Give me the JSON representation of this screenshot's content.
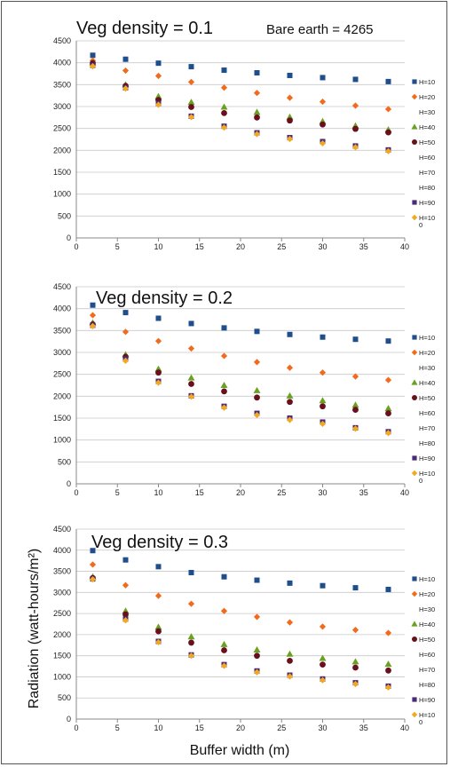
{
  "figure": {
    "ylabel": "Radiation (watt-hours/m²)",
    "xlabel": "Buffer width (m)"
  },
  "chart_data": [
    {
      "type": "scatter",
      "title": "Veg density = 0.1",
      "annotation": "Bare earth = 4265",
      "x": [
        2,
        6,
        10,
        14,
        18,
        22,
        26,
        30,
        34,
        38
      ],
      "xlim": [
        0,
        40
      ],
      "xticks": [
        0,
        5,
        10,
        15,
        20,
        25,
        30,
        35,
        40
      ],
      "ylim": [
        0,
        4500
      ],
      "yticks": [
        0,
        500,
        1000,
        1500,
        2000,
        2500,
        3000,
        3500,
        4000,
        4500
      ],
      "grid": "horizontal",
      "legend_position": "right",
      "series": [
        {
          "name": "H=10",
          "marker": "square",
          "color": "#1f4e8c",
          "values": [
            4170,
            4080,
            3990,
            3910,
            3830,
            3770,
            3710,
            3660,
            3620,
            3570
          ]
        },
        {
          "name": "H=20",
          "marker": "diamond",
          "color": "#f26b1d",
          "values": [
            4050,
            3820,
            3700,
            3560,
            3430,
            3310,
            3200,
            3110,
            3020,
            2940
          ]
        },
        {
          "name": "H=30",
          "marker": "none",
          "color": "#ffffff",
          "values": []
        },
        {
          "name": "H=40",
          "marker": "triangle",
          "color": "#6aa121",
          "values": [
            4000,
            3500,
            3230,
            3100,
            2990,
            2870,
            2760,
            2660,
            2560,
            2470
          ]
        },
        {
          "name": "H=50",
          "marker": "circle",
          "color": "#6a0f1e",
          "values": [
            3990,
            3470,
            3150,
            2990,
            2850,
            2750,
            2680,
            2590,
            2490,
            2410
          ]
        },
        {
          "name": "H=60",
          "marker": "none",
          "color": "#ffffff",
          "values": []
        },
        {
          "name": "H=70",
          "marker": "none",
          "color": "#ffffff",
          "values": []
        },
        {
          "name": "H=80",
          "marker": "none",
          "color": "#ffffff",
          "values": []
        },
        {
          "name": "H=90",
          "marker": "square",
          "color": "#4b2a7a",
          "values": [
            3940,
            3430,
            3070,
            2780,
            2550,
            2400,
            2290,
            2200,
            2100,
            2010
          ]
        },
        {
          "name": "H=100",
          "marker": "diamond",
          "color": "#f2a922",
          "values": [
            3920,
            3410,
            3040,
            2760,
            2520,
            2370,
            2260,
            2160,
            2070,
            1980
          ]
        }
      ]
    },
    {
      "type": "scatter",
      "title": "Veg density = 0.2",
      "x": [
        2,
        6,
        10,
        14,
        18,
        22,
        26,
        30,
        34,
        38
      ],
      "xlim": [
        0,
        40
      ],
      "xticks": [
        0,
        5,
        10,
        15,
        20,
        25,
        30,
        35,
        40
      ],
      "ylim": [
        0,
        4500
      ],
      "yticks": [
        0,
        500,
        1000,
        1500,
        2000,
        2500,
        3000,
        3500,
        4000,
        4500
      ],
      "grid": "horizontal",
      "legend_position": "right",
      "series": [
        {
          "name": "H=10",
          "marker": "square",
          "color": "#1f4e8c",
          "values": [
            4080,
            3910,
            3780,
            3660,
            3560,
            3480,
            3410,
            3350,
            3300,
            3260
          ]
        },
        {
          "name": "H=20",
          "marker": "diamond",
          "color": "#f26b1d",
          "values": [
            3850,
            3470,
            3260,
            3090,
            2920,
            2780,
            2650,
            2540,
            2450,
            2370
          ]
        },
        {
          "name": "H=30",
          "marker": "none",
          "color": "#ffffff",
          "values": []
        },
        {
          "name": "H=40",
          "marker": "triangle",
          "color": "#6aa121",
          "values": [
            3680,
            2950,
            2620,
            2420,
            2250,
            2130,
            2010,
            1900,
            1800,
            1720
          ]
        },
        {
          "name": "H=50",
          "marker": "circle",
          "color": "#6a0f1e",
          "values": [
            3640,
            2900,
            2540,
            2280,
            2110,
            1970,
            1870,
            1770,
            1690,
            1610
          ]
        },
        {
          "name": "H=60",
          "marker": "none",
          "color": "#ffffff",
          "values": []
        },
        {
          "name": "H=70",
          "marker": "none",
          "color": "#ffffff",
          "values": []
        },
        {
          "name": "H=80",
          "marker": "none",
          "color": "#ffffff",
          "values": []
        },
        {
          "name": "H=90",
          "marker": "square",
          "color": "#4b2a7a",
          "values": [
            3620,
            2850,
            2340,
            2010,
            1770,
            1610,
            1500,
            1410,
            1280,
            1190
          ]
        },
        {
          "name": "H=100",
          "marker": "diamond",
          "color": "#f2a922",
          "values": [
            3600,
            2810,
            2310,
            1990,
            1740,
            1570,
            1460,
            1370,
            1260,
            1160
          ]
        }
      ]
    },
    {
      "type": "scatter",
      "title": "Veg density = 0.3",
      "x": [
        2,
        6,
        10,
        14,
        18,
        22,
        26,
        30,
        34,
        38
      ],
      "xlim": [
        0,
        40
      ],
      "xticks": [
        0,
        5,
        10,
        15,
        20,
        25,
        30,
        35,
        40
      ],
      "ylim": [
        0,
        4500
      ],
      "yticks": [
        0,
        500,
        1000,
        1500,
        2000,
        2500,
        3000,
        3500,
        4000,
        4500
      ],
      "grid": "horizontal",
      "legend_position": "right",
      "series": [
        {
          "name": "H=10",
          "marker": "square",
          "color": "#1f4e8c",
          "values": [
            3990,
            3770,
            3610,
            3470,
            3370,
            3290,
            3220,
            3160,
            3110,
            3070
          ]
        },
        {
          "name": "H=20",
          "marker": "diamond",
          "color": "#f26b1d",
          "values": [
            3660,
            3170,
            2920,
            2730,
            2560,
            2420,
            2290,
            2190,
            2110,
            2040
          ]
        },
        {
          "name": "H=30",
          "marker": "none",
          "color": "#ffffff",
          "values": []
        },
        {
          "name": "H=40",
          "marker": "triangle",
          "color": "#6aa121",
          "values": [
            3370,
            2560,
            2180,
            1950,
            1770,
            1640,
            1540,
            1440,
            1360,
            1300
          ]
        },
        {
          "name": "H=50",
          "marker": "circle",
          "color": "#6a0f1e",
          "values": [
            3340,
            2480,
            2080,
            1810,
            1630,
            1500,
            1380,
            1290,
            1220,
            1150
          ]
        },
        {
          "name": "H=60",
          "marker": "none",
          "color": "#ffffff",
          "values": []
        },
        {
          "name": "H=70",
          "marker": "none",
          "color": "#ffffff",
          "values": []
        },
        {
          "name": "H=80",
          "marker": "none",
          "color": "#ffffff",
          "values": []
        },
        {
          "name": "H=90",
          "marker": "square",
          "color": "#4b2a7a",
          "values": [
            3320,
            2370,
            1840,
            1520,
            1290,
            1140,
            1040,
            950,
            860,
            780
          ]
        },
        {
          "name": "H=100",
          "marker": "diamond",
          "color": "#f2a922",
          "values": [
            3310,
            2340,
            1820,
            1500,
            1260,
            1110,
            1010,
            920,
            830,
            750
          ]
        }
      ]
    }
  ]
}
